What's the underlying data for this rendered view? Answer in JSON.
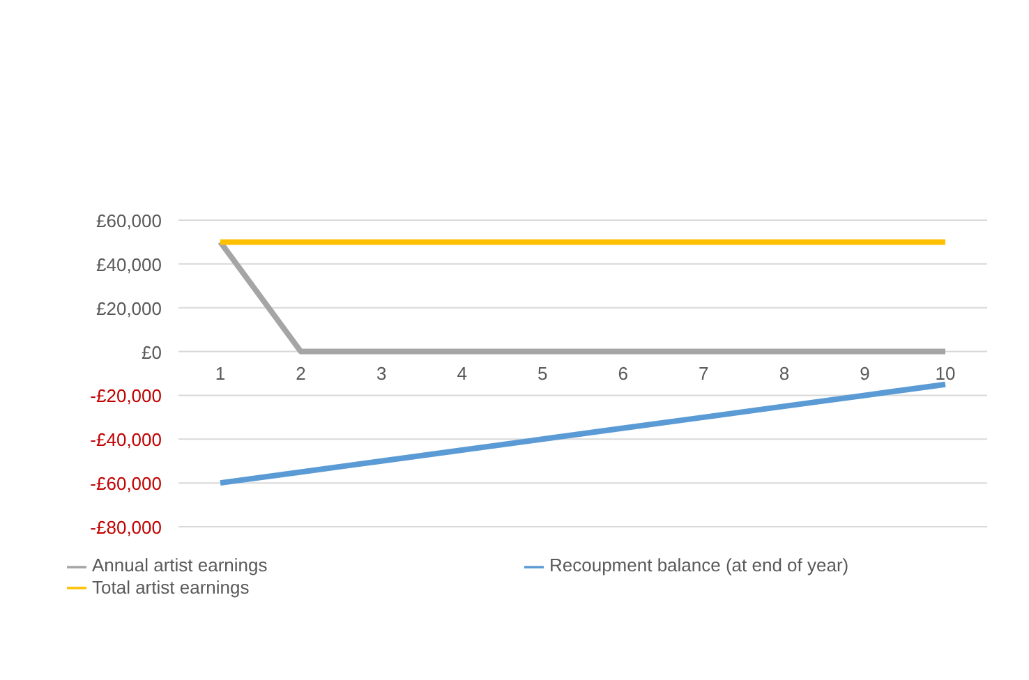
{
  "chart_data": {
    "type": "line",
    "categories": [
      "1",
      "2",
      "3",
      "4",
      "5",
      "6",
      "7",
      "8",
      "9",
      "10"
    ],
    "series": [
      {
        "name": "Annual artist earnings",
        "color": "#a5a5a5",
        "values": [
          50000,
          0,
          0,
          0,
          0,
          0,
          0,
          0,
          0,
          0
        ]
      },
      {
        "name": "Total artist earnings",
        "color": "#ffc000",
        "values": [
          50000,
          50000,
          50000,
          50000,
          50000,
          50000,
          50000,
          50000,
          50000,
          50000
        ]
      },
      {
        "name": "Recoupment balance (at end of year)",
        "color": "#5b9bd5",
        "values": [
          -60000,
          -55000,
          -50000,
          -45000,
          -40000,
          -35000,
          -30000,
          -25000,
          -20000,
          -15000
        ]
      }
    ],
    "ylim": [
      -80000,
      60000
    ],
    "yticks": [
      {
        "value": -80000,
        "label": "-£80,000"
      },
      {
        "value": -60000,
        "label": "-£60,000"
      },
      {
        "value": -40000,
        "label": "-£40,000"
      },
      {
        "value": -20000,
        "label": "-£20,000"
      },
      {
        "value": 0,
        "label": "£0"
      },
      {
        "value": 20000,
        "label": "£20,000"
      },
      {
        "value": 40000,
        "label": "£40,000"
      },
      {
        "value": 60000,
        "label": "£60,000"
      }
    ],
    "grid": "y",
    "legend": "bottom",
    "marker": "none",
    "line_style": "solid"
  }
}
